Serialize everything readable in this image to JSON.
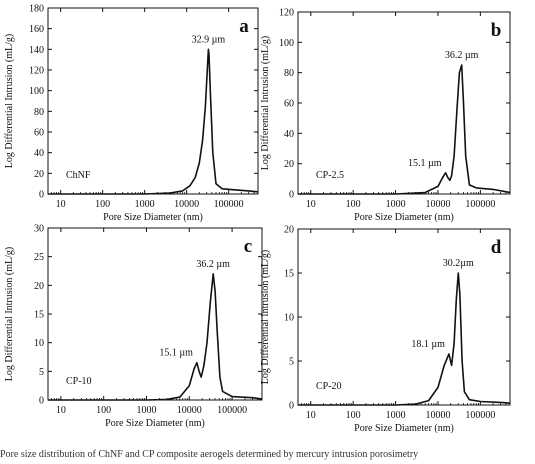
{
  "chart_data": [
    {
      "type": "line",
      "panel": "a",
      "sample": "ChNF",
      "xlabel": "Pore Size Diameter (nm)",
      "ylabel": "Log Differential Intrusion (mL/g)",
      "xscale": "log",
      "xlim": [
        5,
        500000
      ],
      "ylim": [
        0,
        180
      ],
      "xticks": [
        10,
        100,
        1000,
        10000,
        100000
      ],
      "xtick_labels": [
        "10",
        "100",
        "1000",
        "10000",
        "100000"
      ],
      "yticks": [
        0,
        20,
        40,
        60,
        80,
        100,
        120,
        140,
        160,
        180
      ],
      "ytick_labels": [
        "0",
        "20",
        "40",
        "60",
        "80",
        "100",
        "120",
        "140",
        "160",
        "180"
      ],
      "annotations": [
        {
          "text": "32.9 µm",
          "x": 32900,
          "y": 140
        }
      ],
      "series": [
        {
          "x": [
            5,
            100,
            1000,
            4000,
            8000,
            12000,
            16000,
            20000,
            24000,
            28000,
            31000,
            32900,
            34000,
            37000,
            42000,
            50000,
            70000,
            150000,
            300000,
            500000
          ],
          "y": [
            0,
            0,
            0,
            1,
            3,
            8,
            16,
            30,
            52,
            85,
            120,
            140,
            135,
            95,
            40,
            10,
            5,
            4,
            3,
            2
          ]
        }
      ]
    },
    {
      "type": "line",
      "panel": "b",
      "sample": "CP-2.5",
      "xlabel": "Pore Size Diameter (nm)",
      "ylabel": "Log Differential Intrusion (mL/g)",
      "xscale": "log",
      "xlim": [
        5,
        500000
      ],
      "ylim": [
        0,
        120
      ],
      "xticks": [
        10,
        100,
        1000,
        10000,
        100000
      ],
      "xtick_labels": [
        "10",
        "100",
        "1000",
        "10000",
        "100000"
      ],
      "yticks": [
        0,
        20,
        40,
        60,
        80,
        100,
        120
      ],
      "ytick_labels": [
        "0",
        "20",
        "40",
        "60",
        "80",
        "100",
        "120"
      ],
      "annotations": [
        {
          "text": "15.1 µm",
          "x": 15100,
          "y": 14
        },
        {
          "text": "36.2 µm",
          "x": 36200,
          "y": 85
        }
      ],
      "series": [
        {
          "x": [
            5,
            100,
            1000,
            5000,
            10000,
            13000,
            15100,
            17000,
            19000,
            21000,
            24000,
            28000,
            32000,
            36200,
            40000,
            45000,
            55000,
            80000,
            200000,
            500000
          ],
          "y": [
            0,
            0,
            0,
            1,
            5,
            11,
            14,
            11,
            9,
            12,
            25,
            55,
            80,
            85,
            60,
            25,
            6,
            4,
            3,
            1
          ]
        }
      ]
    },
    {
      "type": "line",
      "panel": "c",
      "sample": "CP-10",
      "xlabel": "Pore Size Diameter (nm)",
      "ylabel": "Log Differential Intrusion (mL/g)",
      "xscale": "log",
      "xlim": [
        5,
        500000
      ],
      "ylim": [
        0,
        30
      ],
      "xticks": [
        10,
        100,
        1000,
        10000,
        100000
      ],
      "xtick_labels": [
        "10",
        "100",
        "1000",
        "10000",
        "100000"
      ],
      "yticks": [
        0,
        5,
        10,
        15,
        20,
        25,
        30
      ],
      "ytick_labels": [
        "0",
        "5",
        "10",
        "15",
        "20",
        "25",
        "30"
      ],
      "annotations": [
        {
          "text": "15.1 µm",
          "x": 15100,
          "y": 6.5
        },
        {
          "text": "36.2 µm",
          "x": 36200,
          "y": 22
        }
      ],
      "series": [
        {
          "x": [
            5,
            100,
            1000,
            3000,
            6000,
            10000,
            13000,
            15100,
            17000,
            19000,
            22000,
            26000,
            31000,
            36200,
            40000,
            45000,
            52000,
            60000,
            100000,
            300000,
            500000
          ],
          "y": [
            0,
            0,
            0,
            0.1,
            0.5,
            2.5,
            5.5,
            6.5,
            5,
            4,
            6,
            10,
            17,
            22,
            19,
            12,
            4,
            1.5,
            0.6,
            0.4,
            0.2
          ]
        }
      ]
    },
    {
      "type": "line",
      "panel": "d",
      "sample": "CP-20",
      "xlabel": "Pore Size Diameter (nm)",
      "ylabel": "Log Differential Intrusion (mL/g)",
      "xscale": "log",
      "xlim": [
        5,
        500000
      ],
      "ylim": [
        0,
        20
      ],
      "xticks": [
        10,
        100,
        1000,
        10000,
        100000
      ],
      "xtick_labels": [
        "10",
        "100",
        "1000",
        "10000",
        "100000"
      ],
      "yticks": [
        0,
        5,
        10,
        15,
        20
      ],
      "ytick_labels": [
        "0",
        "5",
        "10",
        "15",
        "20"
      ],
      "annotations": [
        {
          "text": "18.1 µm",
          "x": 18100,
          "y": 5.8
        },
        {
          "text": "30.2µm",
          "x": 30200,
          "y": 15
        }
      ],
      "series": [
        {
          "x": [
            5,
            100,
            1000,
            3000,
            6000,
            10000,
            14000,
            18100,
            21000,
            24000,
            27000,
            30200,
            33000,
            37000,
            42000,
            55000,
            100000,
            300000,
            500000
          ],
          "y": [
            0,
            0,
            0,
            0.1,
            0.5,
            2,
            4.5,
            5.8,
            4.5,
            7,
            12,
            15,
            12.5,
            5,
            1.5,
            0.6,
            0.4,
            0.3,
            0.2
          ]
        }
      ]
    }
  ],
  "caption": "Pore size distribution of ChNF and CP composite aerogels determined by mercury intrusion porosimetry"
}
